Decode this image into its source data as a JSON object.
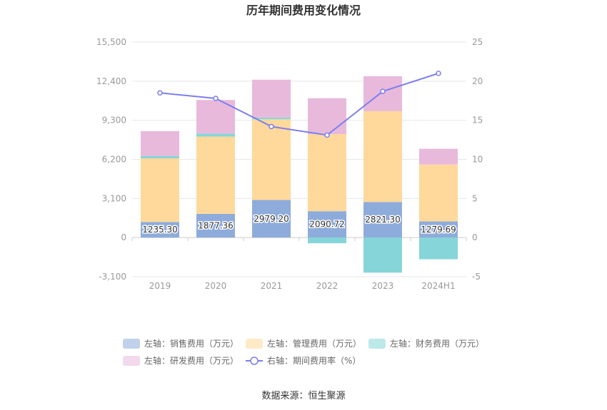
{
  "chart_data": {
    "type": "bar",
    "title": "历年期间费用变化情况",
    "categories": [
      "2019",
      "2020",
      "2021",
      "2022",
      "2023",
      "2024H1"
    ],
    "series": [
      {
        "name": "左轴：销售费用（万元）",
        "axis": "left",
        "kind": "stacked-bar",
        "color": "#8eacdb",
        "values": [
          1235.3,
          1877.36,
          2979.2,
          2090.72,
          2821.3,
          1279.69
        ]
      },
      {
        "name": "左轴：管理费用（万元）",
        "axis": "left",
        "kind": "stacked-bar",
        "color": "#ffd99b",
        "values": [
          5050,
          6130,
          6400,
          6110,
          7200,
          4510
        ]
      },
      {
        "name": "左轴：财务费用（万元）",
        "axis": "left",
        "kind": "stacked-bar",
        "color": "#86d5d8",
        "values": [
          170,
          240,
          140,
          -450,
          -2780,
          -1720
        ]
      },
      {
        "name": "左轴：研发费用（万元）",
        "axis": "left",
        "kind": "stacked-bar",
        "color": "#e8b9db",
        "values": [
          1980,
          2660,
          3000,
          2850,
          2770,
          1250
        ]
      },
      {
        "name": "右轴：期间费用率（%）",
        "axis": "right",
        "kind": "line",
        "color": "#7b7fef",
        "values": [
          18.5,
          17.8,
          14.2,
          13.1,
          18.7,
          21.0
        ]
      }
    ],
    "data_labels": [
      "1235.30",
      "1877.36",
      "2979.20",
      "2090.72",
      "2821.30",
      "1279.69"
    ],
    "y_left": {
      "ticks": [
        "15,500",
        "12,400",
        "9,300",
        "6,200",
        "3,100",
        "0",
        "-3,100"
      ],
      "min": -3100,
      "max": 15500
    },
    "y_right": {
      "ticks": [
        "25",
        "20",
        "15",
        "10",
        "5",
        "0",
        "-5"
      ],
      "min": -5,
      "max": 25
    },
    "grid": true,
    "legend_position": "bottom"
  },
  "source": "数据来源：恒生聚源"
}
